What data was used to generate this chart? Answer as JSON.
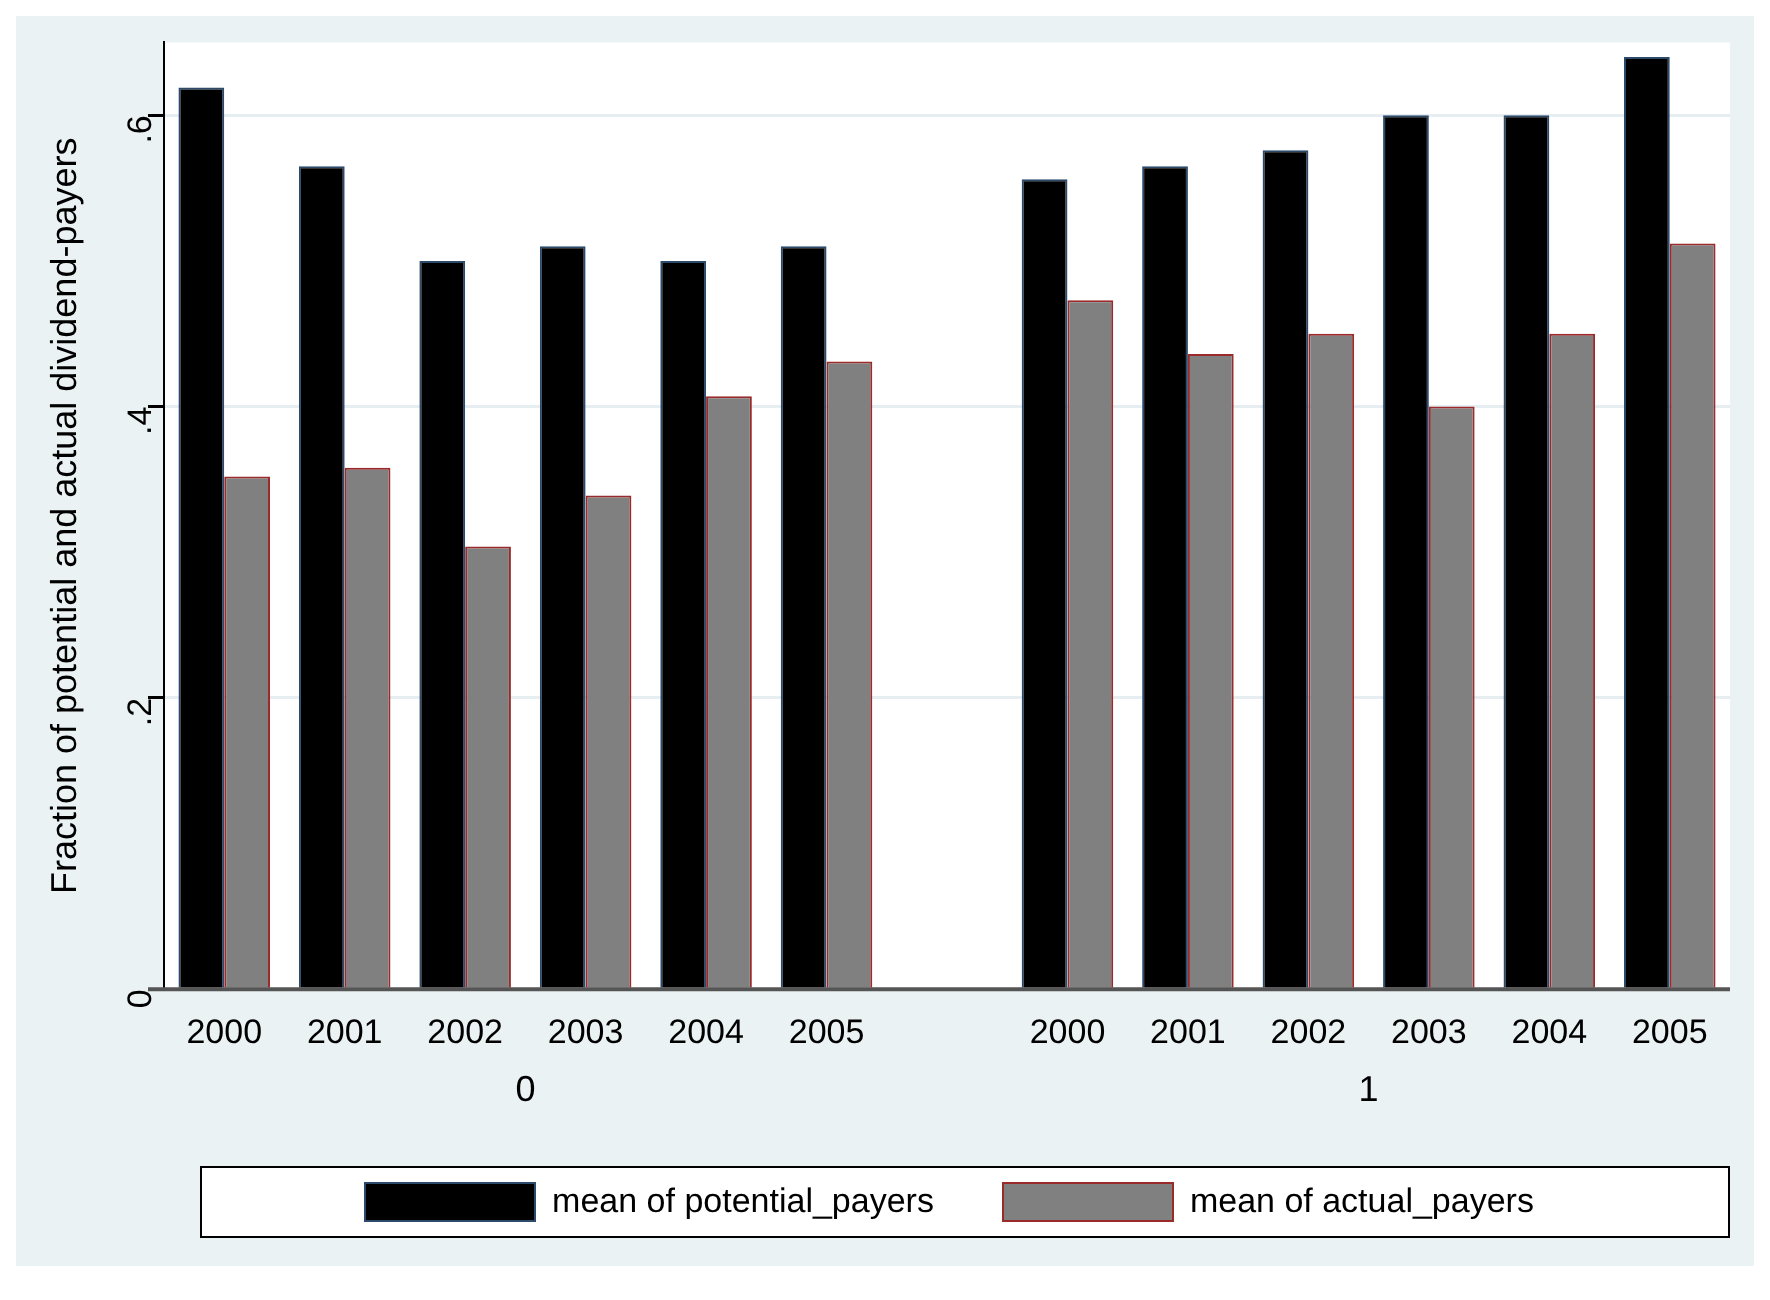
{
  "chart_data": {
    "type": "bar",
    "ylabel": "Fraction of potential and actual dividend-payers",
    "categories": [
      "2000",
      "2001",
      "2002",
      "2003",
      "2004",
      "2005",
      null,
      "2000",
      "2001",
      "2002",
      "2003",
      "2004",
      "2005"
    ],
    "series": [
      {
        "name": "mean of potential_payers",
        "color": "#000000",
        "values": [
          0.619,
          0.565,
          0.5,
          0.51,
          0.5,
          0.51,
          null,
          0.556,
          0.565,
          0.576,
          0.6,
          0.6,
          0.64
        ]
      },
      {
        "name": "mean of actual_payers",
        "color": "#808080",
        "values": [
          0.352,
          0.358,
          0.304,
          0.339,
          0.407,
          0.431,
          null,
          0.473,
          0.436,
          0.45,
          0.4,
          0.45,
          0.512
        ]
      }
    ],
    "annotations": [
      "0",
      "1"
    ],
    "ylim": [
      0,
      0.65
    ],
    "yticks": [
      {
        "value": 0,
        "label": "0"
      },
      {
        "value": 0.2,
        "label": ".2"
      },
      {
        "value": 0.4,
        "label": ".4"
      },
      {
        "value": 0.6,
        "label": ".6"
      }
    ],
    "grid": "y",
    "legend": "bottom"
  }
}
